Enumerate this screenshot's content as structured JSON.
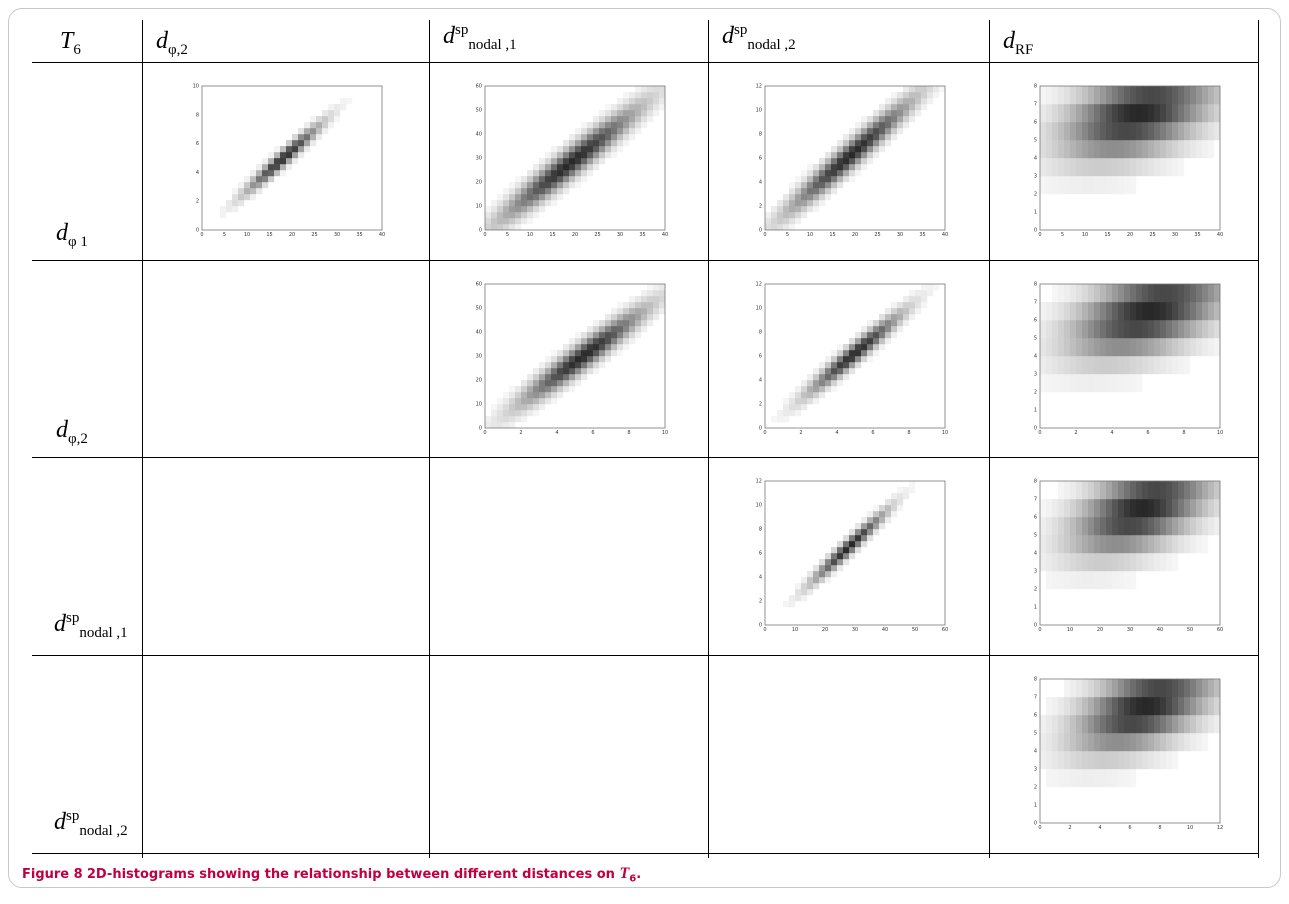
{
  "table": {
    "corner_label": "T",
    "corner_sub": "6",
    "columns": [
      {
        "main": "d",
        "sub": "φ,2",
        "sup": ""
      },
      {
        "main": "d",
        "sub": "nodal ,1",
        "sup": "sp"
      },
      {
        "main": "d",
        "sub": "nodal ,2",
        "sup": "sp"
      },
      {
        "main": "d",
        "sub": "RF",
        "sup": ""
      }
    ],
    "rows": [
      {
        "main": "d",
        "sub": "φ 1",
        "sup": ""
      },
      {
        "main": "d",
        "sub": "φ,2",
        "sup": ""
      },
      {
        "main": "d",
        "sub": "nodal ,1",
        "sup": "sp"
      },
      {
        "main": "d",
        "sub": "nodal ,2",
        "sup": "sp"
      }
    ]
  },
  "caption": {
    "figure_number": "Figure 8",
    "text": "2D-histograms showing the relationship between different distances on ",
    "symbol": "T",
    "symbol_sub": "6",
    "end": "."
  },
  "chart_data": [
    {
      "type": "heatmap",
      "row": 0,
      "col": 0,
      "xlim": [
        0,
        42
      ],
      "ylim": [
        0,
        11
      ],
      "xticks": [
        "0",
        "5",
        "10",
        "15",
        "20",
        "25",
        "30",
        "35",
        "40"
      ],
      "yticks": [
        "0",
        "2",
        "4",
        "6",
        "8",
        "10"
      ],
      "pattern": "diagonal",
      "peak": [
        19,
        5.5
      ],
      "spread": 0.12
    },
    {
      "type": "heatmap",
      "row": 0,
      "col": 1,
      "xlim": [
        0,
        42
      ],
      "ylim": [
        0,
        60
      ],
      "xticks": [
        "0",
        "5",
        "10",
        "15",
        "20",
        "25",
        "30",
        "35",
        "40"
      ],
      "yticks": [
        "0",
        "10",
        "20",
        "30",
        "40",
        "50",
        "60"
      ],
      "pattern": "diagonal",
      "peak": [
        20,
        28
      ],
      "spread": 0.22
    },
    {
      "type": "heatmap",
      "row": 0,
      "col": 2,
      "xlim": [
        0,
        42
      ],
      "ylim": [
        0,
        12.5
      ],
      "xticks": [
        "0",
        "5",
        "10",
        "15",
        "20",
        "25",
        "30",
        "35",
        "40"
      ],
      "yticks": [
        "0",
        "2",
        "4",
        "6",
        "8",
        "10",
        "12"
      ],
      "pattern": "diagonal",
      "peak": [
        20,
        6.5
      ],
      "spread": 0.2
    },
    {
      "type": "heatmap",
      "row": 0,
      "col": 3,
      "xlim": [
        0,
        42
      ],
      "ylim": [
        0,
        8
      ],
      "xticks": [
        "0",
        "5",
        "10",
        "15",
        "20",
        "25",
        "30",
        "35",
        "40"
      ],
      "yticks": [
        "0",
        "1",
        "2",
        "3",
        "4",
        "5",
        "6",
        "7",
        "8"
      ],
      "pattern": "banded",
      "peak": [
        20,
        6
      ],
      "spread": 0.25
    },
    {
      "type": "heatmap",
      "row": 1,
      "col": 1,
      "xlim": [
        0,
        11
      ],
      "ylim": [
        0,
        60
      ],
      "xticks": [
        "0",
        "2",
        "4",
        "6",
        "8",
        "10"
      ],
      "yticks": [
        "0",
        "10",
        "20",
        "30",
        "40",
        "50",
        "60"
      ],
      "pattern": "diagonal",
      "peak": [
        6,
        30
      ],
      "spread": 0.2
    },
    {
      "type": "heatmap",
      "row": 1,
      "col": 2,
      "xlim": [
        0,
        11
      ],
      "ylim": [
        0,
        12.5
      ],
      "xticks": [
        "0",
        "2",
        "4",
        "6",
        "8",
        "10"
      ],
      "yticks": [
        "0",
        "2",
        "4",
        "6",
        "8",
        "10",
        "12"
      ],
      "pattern": "diagonal",
      "peak": [
        5.5,
        6.5
      ],
      "spread": 0.15
    },
    {
      "type": "heatmap",
      "row": 1,
      "col": 3,
      "xlim": [
        0,
        11
      ],
      "ylim": [
        0,
        8
      ],
      "xticks": [
        "0",
        "2",
        "4",
        "6",
        "8",
        "10"
      ],
      "yticks": [
        "0",
        "1",
        "2",
        "3",
        "4",
        "5",
        "6",
        "7",
        "8"
      ],
      "pattern": "banded",
      "peak": [
        6,
        6
      ],
      "spread": 0.25
    },
    {
      "type": "heatmap",
      "row": 2,
      "col": 2,
      "xlim": [
        0,
        60
      ],
      "ylim": [
        0,
        12.5
      ],
      "xticks": [
        "0",
        "10",
        "20",
        "30",
        "40",
        "50",
        "60"
      ],
      "yticks": [
        "0",
        "2",
        "4",
        "6",
        "8",
        "10",
        "12"
      ],
      "pattern": "diagonal",
      "peak": [
        28,
        6.8
      ],
      "spread": 0.12
    },
    {
      "type": "heatmap",
      "row": 2,
      "col": 3,
      "xlim": [
        0,
        60
      ],
      "ylim": [
        0,
        8
      ],
      "xticks": [
        "0",
        "10",
        "20",
        "30",
        "40",
        "50",
        "60"
      ],
      "yticks": [
        "0",
        "1",
        "2",
        "3",
        "4",
        "5",
        "6",
        "7",
        "8"
      ],
      "pattern": "banded",
      "peak": [
        30,
        6
      ],
      "spread": 0.22
    },
    {
      "type": "heatmap",
      "row": 3,
      "col": 3,
      "xlim": [
        0,
        12.5
      ],
      "ylim": [
        0,
        8
      ],
      "xticks": [
        "0",
        "2",
        "4",
        "6",
        "8",
        "10",
        "12"
      ],
      "yticks": [
        "0",
        "1",
        "2",
        "3",
        "4",
        "5",
        "6",
        "7",
        "8"
      ],
      "pattern": "banded",
      "peak": [
        6.5,
        6
      ],
      "spread": 0.22
    }
  ]
}
